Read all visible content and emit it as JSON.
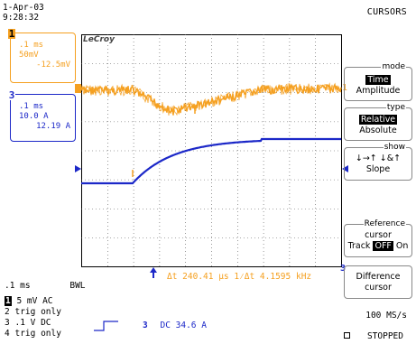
{
  "header": {
    "date": "1-Apr-03",
    "time": "9:28:32",
    "title": "CURSORS"
  },
  "channel1": {
    "number": "1",
    "timebase": ".1 ms",
    "scale": "50mV",
    "value": "-12.5mV",
    "color": "#f5a020"
  },
  "channel3": {
    "number": "3",
    "timebase": ".1 ms",
    "scale": "10.0 A",
    "value": "12.19 A",
    "color": "#1c28c8"
  },
  "scope": {
    "brand": "LeCroy",
    "grid_divisions_x": 10,
    "grid_divisions_y": 8
  },
  "menu": {
    "mode": {
      "caption": "mode",
      "selected": "Time",
      "other": "Amplitude"
    },
    "type": {
      "caption": "type",
      "selected": "Relative",
      "other": "Absolute"
    },
    "show": {
      "caption": "show",
      "arrows": "↓→↑  ↓&↑",
      "label": "Slope"
    },
    "reference": {
      "caption": "Reference",
      "line2": "cursor",
      "track_label": "Track",
      "off_label": "OFF",
      "on_label": "On"
    },
    "difference": {
      "line1": "Difference",
      "line2": "cursor",
      "marker": "3"
    }
  },
  "status": {
    "timebase_line": ".1 ms",
    "bwl": "BWL",
    "ch1_line": "5 mV  AC",
    "ch2_line": "trig only",
    "ch3_line": ".1  V  DC",
    "ch4_line": "trig only",
    "trigger_channel": "3",
    "trigger_text": "DC 34.6 A",
    "measurement": "Δt      240.41 μs   1⁄Δt 4.1595 kHz",
    "sample_rate": "100 MS/s",
    "state": "STOPPED"
  },
  "traces": {
    "ch1_level_before": 0.0,
    "ch1_dip_depth": -12.5,
    "ch3_level_before": 0.0,
    "ch3_level_after": 12.19
  }
}
